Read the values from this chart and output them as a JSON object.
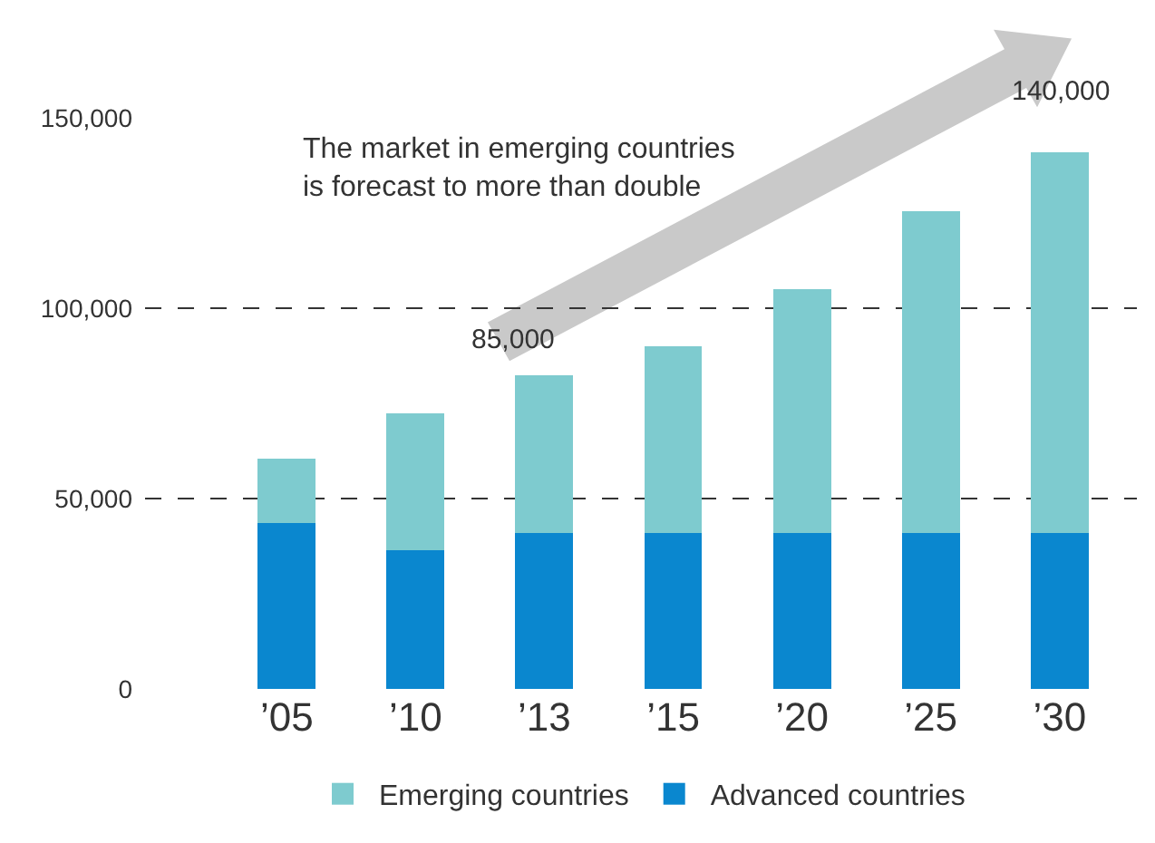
{
  "chart_data": {
    "type": "bar",
    "stacked": true,
    "categories": [
      "’05",
      "’10",
      "’13",
      "’15",
      "’20",
      "’25",
      "’30"
    ],
    "series": [
      {
        "name": "Advanced countries",
        "color": "#0a87cf",
        "values": [
          43500,
          36500,
          41000,
          41000,
          41000,
          41000,
          41000
        ]
      },
      {
        "name": "Emerging countries",
        "color": "#7ecbcf",
        "values": [
          17000,
          36000,
          41500,
          49000,
          64000,
          84500,
          100000
        ]
      }
    ],
    "ylim": [
      0,
      150000
    ],
    "yticks": [
      {
        "value": 0,
        "label": "0"
      },
      {
        "value": 50000,
        "label": "50,000"
      },
      {
        "value": 100000,
        "label": "100,000"
      },
      {
        "value": 150000,
        "label": "150,000"
      }
    ],
    "grid": "y",
    "legend": "bottom",
    "annotations": [
      "85,000",
      "140,000",
      "The market in emerging countries\nis forecast to more than double"
    ]
  }
}
